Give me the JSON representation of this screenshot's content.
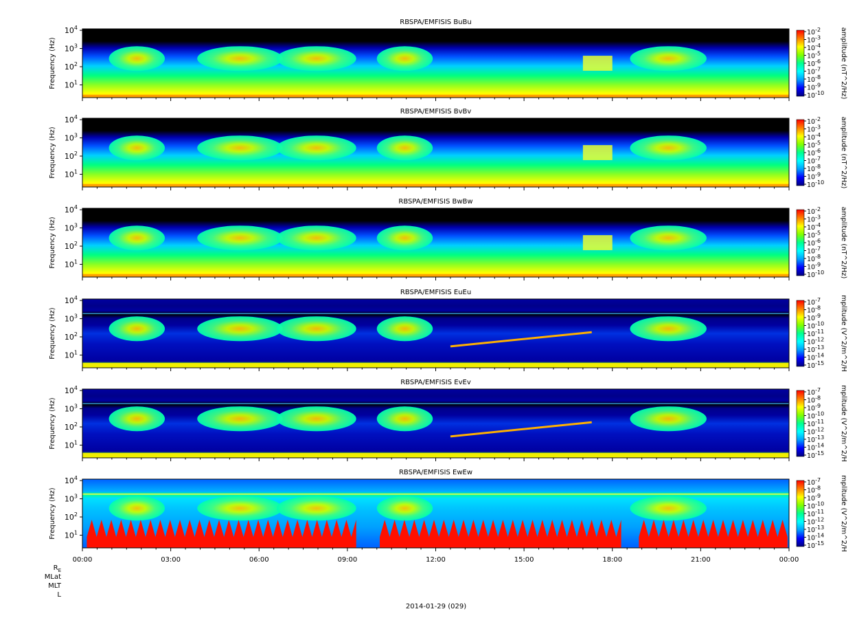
{
  "chart_data": {
    "type": "heatmap",
    "date_label": "2014-01-29 (029)",
    "x_tick_labels": [
      "00:00",
      "03:00",
      "06:00",
      "09:00",
      "12:00",
      "15:00",
      "18:00",
      "21:00",
      "00:00"
    ],
    "x_range_hours": [
      0,
      24
    ],
    "y_scale": "log",
    "y_range_hz": [
      2,
      12000
    ],
    "y_tick_values": [
      10,
      100,
      1000,
      10000
    ],
    "ephemeris_labels": [
      "R",
      "MLat",
      "MLT",
      "L"
    ],
    "ephemeris_subscript": "E",
    "colorscale": [
      "#000080",
      "#0000ff",
      "#00a0ff",
      "#00ffff",
      "#00ff90",
      "#80ff00",
      "#ffff00",
      "#ff8000",
      "#ff0000"
    ],
    "panels": [
      {
        "title": "RBSPA/EMFISIS  BuBu",
        "ylabel": "Frequency (Hz)",
        "colorbar_label": "amplitude (nT^2/Hz)",
        "colorbar_exponents": [
          -2,
          -3,
          -4,
          -5,
          -6,
          -7,
          -8,
          -9,
          -10
        ],
        "kind": "B"
      },
      {
        "title": "RBSPA/EMFISIS  BvBv",
        "ylabel": "Frequency (Hz)",
        "colorbar_label": "amplitude (nT^2/Hz)",
        "colorbar_exponents": [
          -2,
          -3,
          -4,
          -5,
          -6,
          -7,
          -8,
          -9,
          -10
        ],
        "kind": "B"
      },
      {
        "title": "RBSPA/EMFISIS  BwBw",
        "ylabel": "Frequency (Hz)",
        "colorbar_label": "amplitude (nT^2/Hz)",
        "colorbar_exponents": [
          -2,
          -3,
          -4,
          -5,
          -6,
          -7,
          -8,
          -9,
          -10
        ],
        "kind": "B"
      },
      {
        "title": "RBSPA/EMFISIS  EuEu",
        "ylabel": "Frequency (Hz)",
        "colorbar_label": "mplitude (V^2/m^2/H",
        "colorbar_exponents": [
          -7,
          -8,
          -9,
          -10,
          -11,
          -12,
          -13,
          -14,
          -15
        ],
        "kind": "E"
      },
      {
        "title": "RBSPA/EMFISIS  EvEv",
        "ylabel": "Frequency (Hz)",
        "colorbar_label": "mplitude (V^2/m^2/H",
        "colorbar_exponents": [
          -7,
          -8,
          -9,
          -10,
          -11,
          -12,
          -13,
          -14,
          -15
        ],
        "kind": "E"
      },
      {
        "title": "RBSPA/EMFISIS  EwEw",
        "ylabel": "Frequency (Hz)",
        "colorbar_label": "mplitude (V^2/m^2/H",
        "colorbar_exponents": [
          -7,
          -8,
          -9,
          -10,
          -11,
          -12,
          -13,
          -14,
          -15
        ],
        "kind": "Ew"
      }
    ]
  }
}
